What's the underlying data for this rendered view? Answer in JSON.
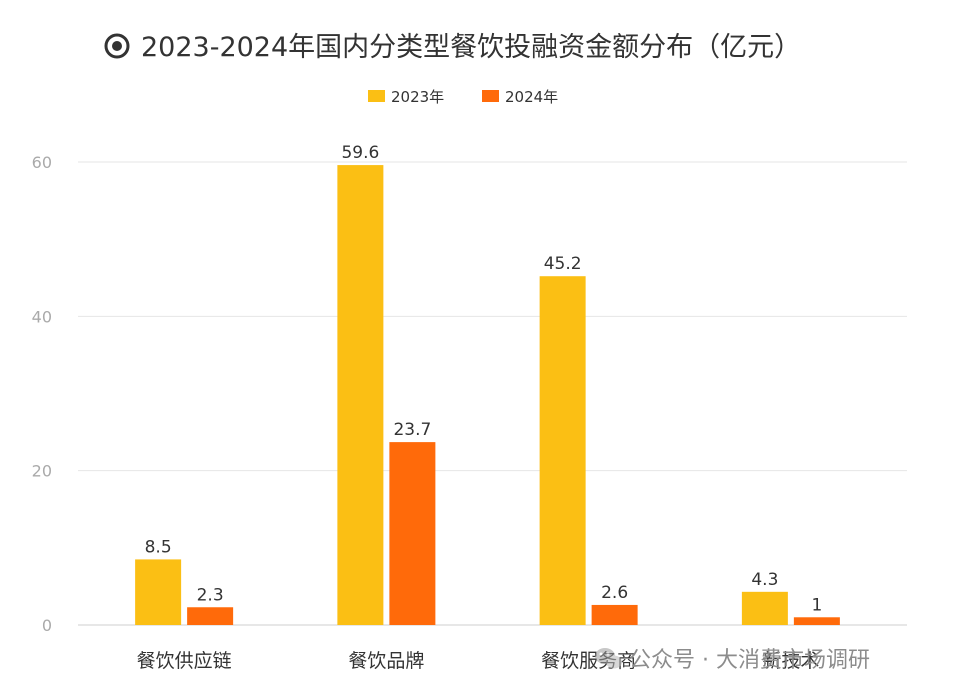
{
  "chart_data": {
    "type": "bar",
    "title": "2023-2024年国内分类型餐饮投融资金额分布（亿元）",
    "categories": [
      "餐饮供应链",
      "餐饮品牌",
      "餐饮服务商",
      "新技术"
    ],
    "series": [
      {
        "name": "2023年",
        "color": "#FBBF14",
        "values": [
          8.5,
          59.6,
          45.2,
          4.3
        ]
      },
      {
        "name": "2024年",
        "color": "#FF6A0A",
        "values": [
          2.3,
          23.7,
          2.6,
          1
        ]
      }
    ],
    "ylim": [
      0,
      60
    ],
    "yticks": [
      0,
      20,
      40,
      60
    ],
    "grid": true,
    "legend_position": "top-center",
    "title_icon": "radio-circle-icon"
  },
  "watermark": {
    "text": "公众号 · 大消费市场调研",
    "icon": "wechat-icon"
  }
}
